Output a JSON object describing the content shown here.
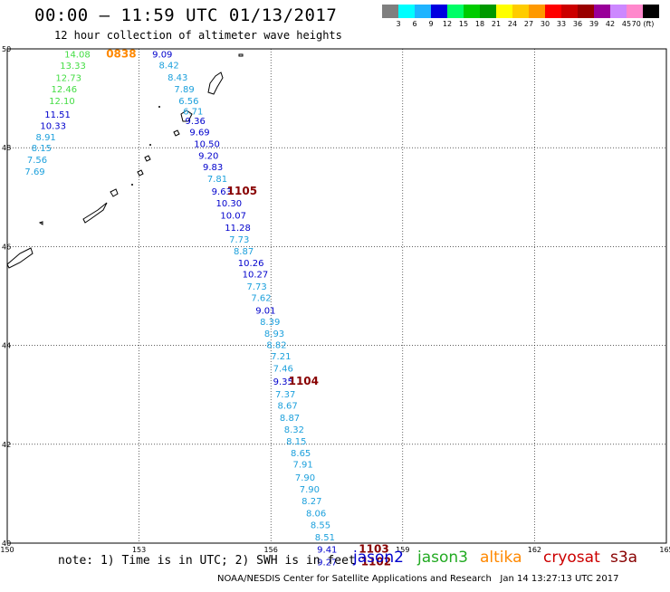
{
  "title": "00:00 – 11:59 UTC 01/13/2017",
  "subtitle": "12 hour collection of altimeter wave heights",
  "legend": {
    "colors": [
      "#7f7f7f",
      "#00ffff",
      "#1fb4ff",
      "#0000e0",
      "#00ff66",
      "#00cc00",
      "#009900",
      "#ffff00",
      "#ffcc00",
      "#ff9900",
      "#ff0000",
      "#cc0000",
      "#990000",
      "#990099",
      "#cc88ff",
      "#ff88cc",
      "#000000"
    ],
    "labels": [
      "3",
      "6",
      "9",
      "12",
      "15",
      "18",
      "21",
      "24",
      "27",
      "30",
      "33",
      "36",
      "39",
      "42",
      "45",
      "70 (ft)"
    ]
  },
  "axes": {
    "lon_ticks": [
      "150",
      "153",
      "156",
      "159",
      "162",
      "165"
    ],
    "lat_ticks": [
      "50",
      "48",
      "46",
      "44",
      "42",
      "40"
    ]
  },
  "satellite_colors": {
    "jason2": "#0000cc",
    "jason2_light": "#1ca0dc",
    "jason3": "#44dd44",
    "altika": "#ff8800",
    "cryosat": "#cc0000",
    "s3a": "#880000"
  },
  "observations": [
    {
      "lon": 151.3,
      "lat": 49.9,
      "swh": "14.08",
      "sat": "jason3"
    },
    {
      "lon": 151.2,
      "lat": 49.67,
      "swh": "13.33",
      "sat": "jason3"
    },
    {
      "lon": 151.1,
      "lat": 49.42,
      "swh": "12.73",
      "sat": "jason3"
    },
    {
      "lon": 151.0,
      "lat": 49.19,
      "swh": "12.46",
      "sat": "jason3"
    },
    {
      "lon": 150.95,
      "lat": 48.96,
      "swh": "12.10",
      "sat": "jason3"
    },
    {
      "lon": 150.85,
      "lat": 48.68,
      "swh": "11.51",
      "sat": "jason2"
    },
    {
      "lon": 150.75,
      "lat": 48.45,
      "swh": "10.33",
      "sat": "jason2"
    },
    {
      "lon": 150.65,
      "lat": 48.22,
      "swh": "8.91",
      "sat": "jason2_light"
    },
    {
      "lon": 150.55,
      "lat": 48.0,
      "swh": "8.15",
      "sat": "jason2_light"
    },
    {
      "lon": 150.45,
      "lat": 47.77,
      "swh": "7.56",
      "sat": "jason2_light"
    },
    {
      "lon": 150.4,
      "lat": 47.53,
      "swh": "7.69",
      "sat": "jason2_light"
    },
    {
      "lon": 153.3,
      "lat": 49.9,
      "swh": "9.09",
      "sat": "jason2"
    },
    {
      "lon": 153.45,
      "lat": 49.68,
      "swh": "8.42",
      "sat": "jason2_light"
    },
    {
      "lon": 153.65,
      "lat": 49.43,
      "swh": "8.43",
      "sat": "jason2_light"
    },
    {
      "lon": 153.8,
      "lat": 49.19,
      "swh": "7.89",
      "sat": "jason2_light"
    },
    {
      "lon": 153.9,
      "lat": 48.96,
      "swh": "6.56",
      "sat": "jason2_light"
    },
    {
      "lon": 154.0,
      "lat": 48.75,
      "swh": "6.71",
      "sat": "jason2_light"
    },
    {
      "lon": 154.05,
      "lat": 48.55,
      "swh": "9.36",
      "sat": "jason2"
    },
    {
      "lon": 154.15,
      "lat": 48.32,
      "swh": "9.69",
      "sat": "jason2"
    },
    {
      "lon": 154.25,
      "lat": 48.09,
      "swh": "10.50",
      "sat": "jason2"
    },
    {
      "lon": 154.35,
      "lat": 47.85,
      "swh": "9.20",
      "sat": "jason2"
    },
    {
      "lon": 154.45,
      "lat": 47.62,
      "swh": "9.83",
      "sat": "jason2"
    },
    {
      "lon": 154.55,
      "lat": 47.38,
      "swh": "7.81",
      "sat": "jason2_light"
    },
    {
      "lon": 154.65,
      "lat": 47.12,
      "swh": "9.63",
      "sat": "jason2"
    },
    {
      "lon": 154.75,
      "lat": 46.89,
      "swh": "10.30",
      "sat": "jason2"
    },
    {
      "lon": 154.85,
      "lat": 46.64,
      "swh": "10.07",
      "sat": "jason2"
    },
    {
      "lon": 154.95,
      "lat": 46.39,
      "swh": "11.28",
      "sat": "jason2"
    },
    {
      "lon": 155.05,
      "lat": 46.15,
      "swh": "7.73",
      "sat": "jason2_light"
    },
    {
      "lon": 155.15,
      "lat": 45.92,
      "swh": "8.87",
      "sat": "jason2_light"
    },
    {
      "lon": 155.25,
      "lat": 45.68,
      "swh": "10.26",
      "sat": "jason2"
    },
    {
      "lon": 155.35,
      "lat": 45.45,
      "swh": "10.27",
      "sat": "jason2"
    },
    {
      "lon": 155.45,
      "lat": 45.2,
      "swh": "7.73",
      "sat": "jason2_light"
    },
    {
      "lon": 155.55,
      "lat": 44.97,
      "swh": "7.62",
      "sat": "jason2_light"
    },
    {
      "lon": 155.65,
      "lat": 44.72,
      "swh": "9.01",
      "sat": "jason2"
    },
    {
      "lon": 155.75,
      "lat": 44.49,
      "swh": "8.39",
      "sat": "jason2_light"
    },
    {
      "lon": 155.85,
      "lat": 44.25,
      "swh": "8.93",
      "sat": "jason2_light"
    },
    {
      "lon": 155.9,
      "lat": 44.02,
      "swh": "8.82",
      "sat": "jason2_light"
    },
    {
      "lon": 156.0,
      "lat": 43.79,
      "swh": "7.21",
      "sat": "jason2_light"
    },
    {
      "lon": 156.05,
      "lat": 43.54,
      "swh": "7.46",
      "sat": "jason2_light"
    },
    {
      "lon": 156.05,
      "lat": 43.28,
      "swh": "9.35",
      "sat": "jason2"
    },
    {
      "lon": 156.1,
      "lat": 43.02,
      "swh": "7.37",
      "sat": "jason2_light"
    },
    {
      "lon": 156.15,
      "lat": 42.79,
      "swh": "8.67",
      "sat": "jason2_light"
    },
    {
      "lon": 156.2,
      "lat": 42.55,
      "swh": "8.87",
      "sat": "jason2_light"
    },
    {
      "lon": 156.3,
      "lat": 42.31,
      "swh": "8.32",
      "sat": "jason2_light"
    },
    {
      "lon": 156.35,
      "lat": 42.07,
      "swh": "8.15",
      "sat": "jason2_light"
    },
    {
      "lon": 156.45,
      "lat": 41.83,
      "swh": "8.65",
      "sat": "jason2_light"
    },
    {
      "lon": 156.5,
      "lat": 41.6,
      "swh": "7.91",
      "sat": "jason2_light"
    },
    {
      "lon": 156.55,
      "lat": 41.34,
      "swh": "7.90",
      "sat": "jason2_light"
    },
    {
      "lon": 156.65,
      "lat": 41.1,
      "swh": "7.90",
      "sat": "jason2_light"
    },
    {
      "lon": 156.7,
      "lat": 40.86,
      "swh": "8.27",
      "sat": "jason2_light"
    },
    {
      "lon": 156.8,
      "lat": 40.61,
      "swh": "8.06",
      "sat": "jason2_light"
    },
    {
      "lon": 156.9,
      "lat": 40.38,
      "swh": "8.55",
      "sat": "jason2_light"
    },
    {
      "lon": 157.0,
      "lat": 40.13,
      "swh": "8.51",
      "sat": "jason2_light"
    },
    {
      "lon": 157.05,
      "lat": 39.88,
      "swh": "9.41",
      "sat": "jason2"
    },
    {
      "lon": 157.05,
      "lat": 39.62,
      "swh": "9.27",
      "sat": "jason2"
    }
  ],
  "time_labels": [
    {
      "lon": 152.25,
      "lat": 49.9,
      "text": "0838",
      "sat": "altika"
    },
    {
      "lon": 155.0,
      "lat": 47.12,
      "text": "1105",
      "sat": "s3a"
    },
    {
      "lon": 156.4,
      "lat": 43.28,
      "text": "1104",
      "sat": "s3a"
    },
    {
      "lon": 158.0,
      "lat": 39.88,
      "text": "1103",
      "sat": "s3a"
    },
    {
      "lon": 158.05,
      "lat": 39.62,
      "text": "1102",
      "sat": "s3a"
    }
  ],
  "note": "note: 1) Time is in UTC; 2) SWH is in feet",
  "satellites_key": [
    "jason2",
    "jason3",
    "altika",
    "cryosat",
    "s3a"
  ],
  "credit": "NOAA/NESDIS Center for Satellite Applications and Research   Jan 14 13:27:13 UTC 2017"
}
